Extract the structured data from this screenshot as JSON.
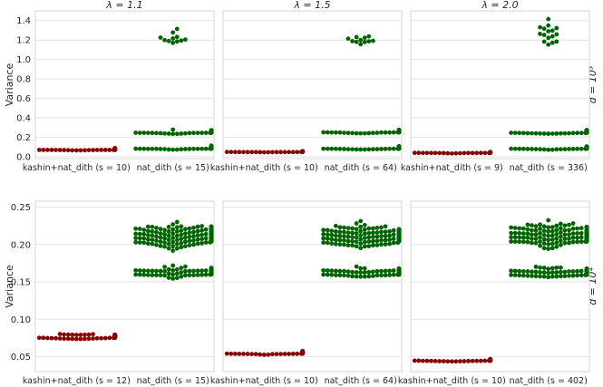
{
  "chart_data": {
    "type": "scatter",
    "style": "swarm",
    "grid": true,
    "colors": {
      "kashin": "#8b0000",
      "natdith": "#006400",
      "grid": "#dddddd",
      "frame": "#cccccc"
    },
    "columns": [
      {
        "title": "λ = 1.1"
      },
      {
        "title": "λ = 1.5"
      },
      {
        "title": "λ = 2.0"
      }
    ],
    "rows": [
      {
        "label": "d = 10³",
        "ylabel": "Variance",
        "ylim": [
          -0.02,
          1.5
        ],
        "yticks": [
          "0.0",
          "0.2",
          "0.4",
          "0.6",
          "0.8",
          "1.0",
          "1.2",
          "1.4"
        ],
        "ytick_values": [
          0.0,
          0.2,
          0.4,
          0.6,
          0.8,
          1.0,
          1.2,
          1.4
        ],
        "panels": [
          {
            "categories": [
              "kashin+nat_dith (s = 10)",
              "nat_dith (s = 15)"
            ],
            "groups": [
              [
                {
                  "center": 0.075,
                  "n": 120,
                  "sd": 0.007
                }
              ],
              [
                {
                  "center": 0.255,
                  "n": 90,
                  "sd": 0.012
                },
                {
                  "center": 0.09,
                  "n": 90,
                  "sd": 0.012
                },
                {
                  "center": 1.2,
                  "n": 11,
                  "sd": 0.07
                }
              ]
            ]
          },
          {
            "categories": [
              "kashin+nat_dith (s = 10)",
              "nat_dith (s = 64)"
            ],
            "groups": [
              [
                {
                  "center": 0.05,
                  "n": 60,
                  "sd": 0.004
                }
              ],
              [
                {
                  "center": 0.255,
                  "n": 90,
                  "sd": 0.012
                },
                {
                  "center": 0.09,
                  "n": 90,
                  "sd": 0.012
                },
                {
                  "center": 1.2,
                  "n": 11,
                  "sd": 0.05
                }
              ]
            ]
          },
          {
            "categories": [
              "kashin+nat_dith (s = 9)",
              "nat_dith (s = 336)"
            ],
            "groups": [
              [
                {
                  "center": 0.04,
                  "n": 50,
                  "sd": 0.004
                }
              ],
              [
                {
                  "center": 0.255,
                  "n": 90,
                  "sd": 0.012
                },
                {
                  "center": 0.09,
                  "n": 90,
                  "sd": 0.012
                },
                {
                  "center": 1.27,
                  "n": 16,
                  "sd": 0.08
                }
              ]
            ]
          }
        ]
      },
      {
        "label": "d = 10⁴",
        "ylabel": "Variance",
        "ylim": [
          0.03,
          0.258
        ],
        "yticks": [
          "0.05",
          "0.10",
          "0.15",
          "0.20",
          "0.25"
        ],
        "ytick_values": [
          0.05,
          0.1,
          0.15,
          0.2,
          0.25
        ],
        "panels": [
          {
            "categories": [
              "kashin+nat_dith (s = 12)",
              "nat_dith (s = 15)"
            ],
            "groups": [
              [
                {
                  "center": 0.077,
                  "n": 180,
                  "sd": 0.002
                }
              ],
              [
                {
                  "center": 0.212,
                  "n": 260,
                  "sd": 0.009
                },
                {
                  "center": 0.163,
                  "n": 150,
                  "sd": 0.004
                }
              ]
            ]
          },
          {
            "categories": [
              "kashin+nat_dith (s = 10)",
              "nat_dith (s = 64)"
            ],
            "groups": [
              [
                {
                  "center": 0.055,
                  "n": 110,
                  "sd": 0.0015
                }
              ],
              [
                {
                  "center": 0.212,
                  "n": 260,
                  "sd": 0.009
                },
                {
                  "center": 0.163,
                  "n": 150,
                  "sd": 0.004
                }
              ]
            ]
          },
          {
            "categories": [
              "kashin+nat_dith (s = 10)",
              "nat_dith (s = 402)"
            ],
            "groups": [
              [
                {
                  "center": 0.045,
                  "n": 60,
                  "sd": 0.0012
                }
              ],
              [
                {
                  "center": 0.212,
                  "n": 260,
                  "sd": 0.009
                },
                {
                  "center": 0.163,
                  "n": 150,
                  "sd": 0.004
                }
              ]
            ]
          }
        ]
      }
    ]
  }
}
